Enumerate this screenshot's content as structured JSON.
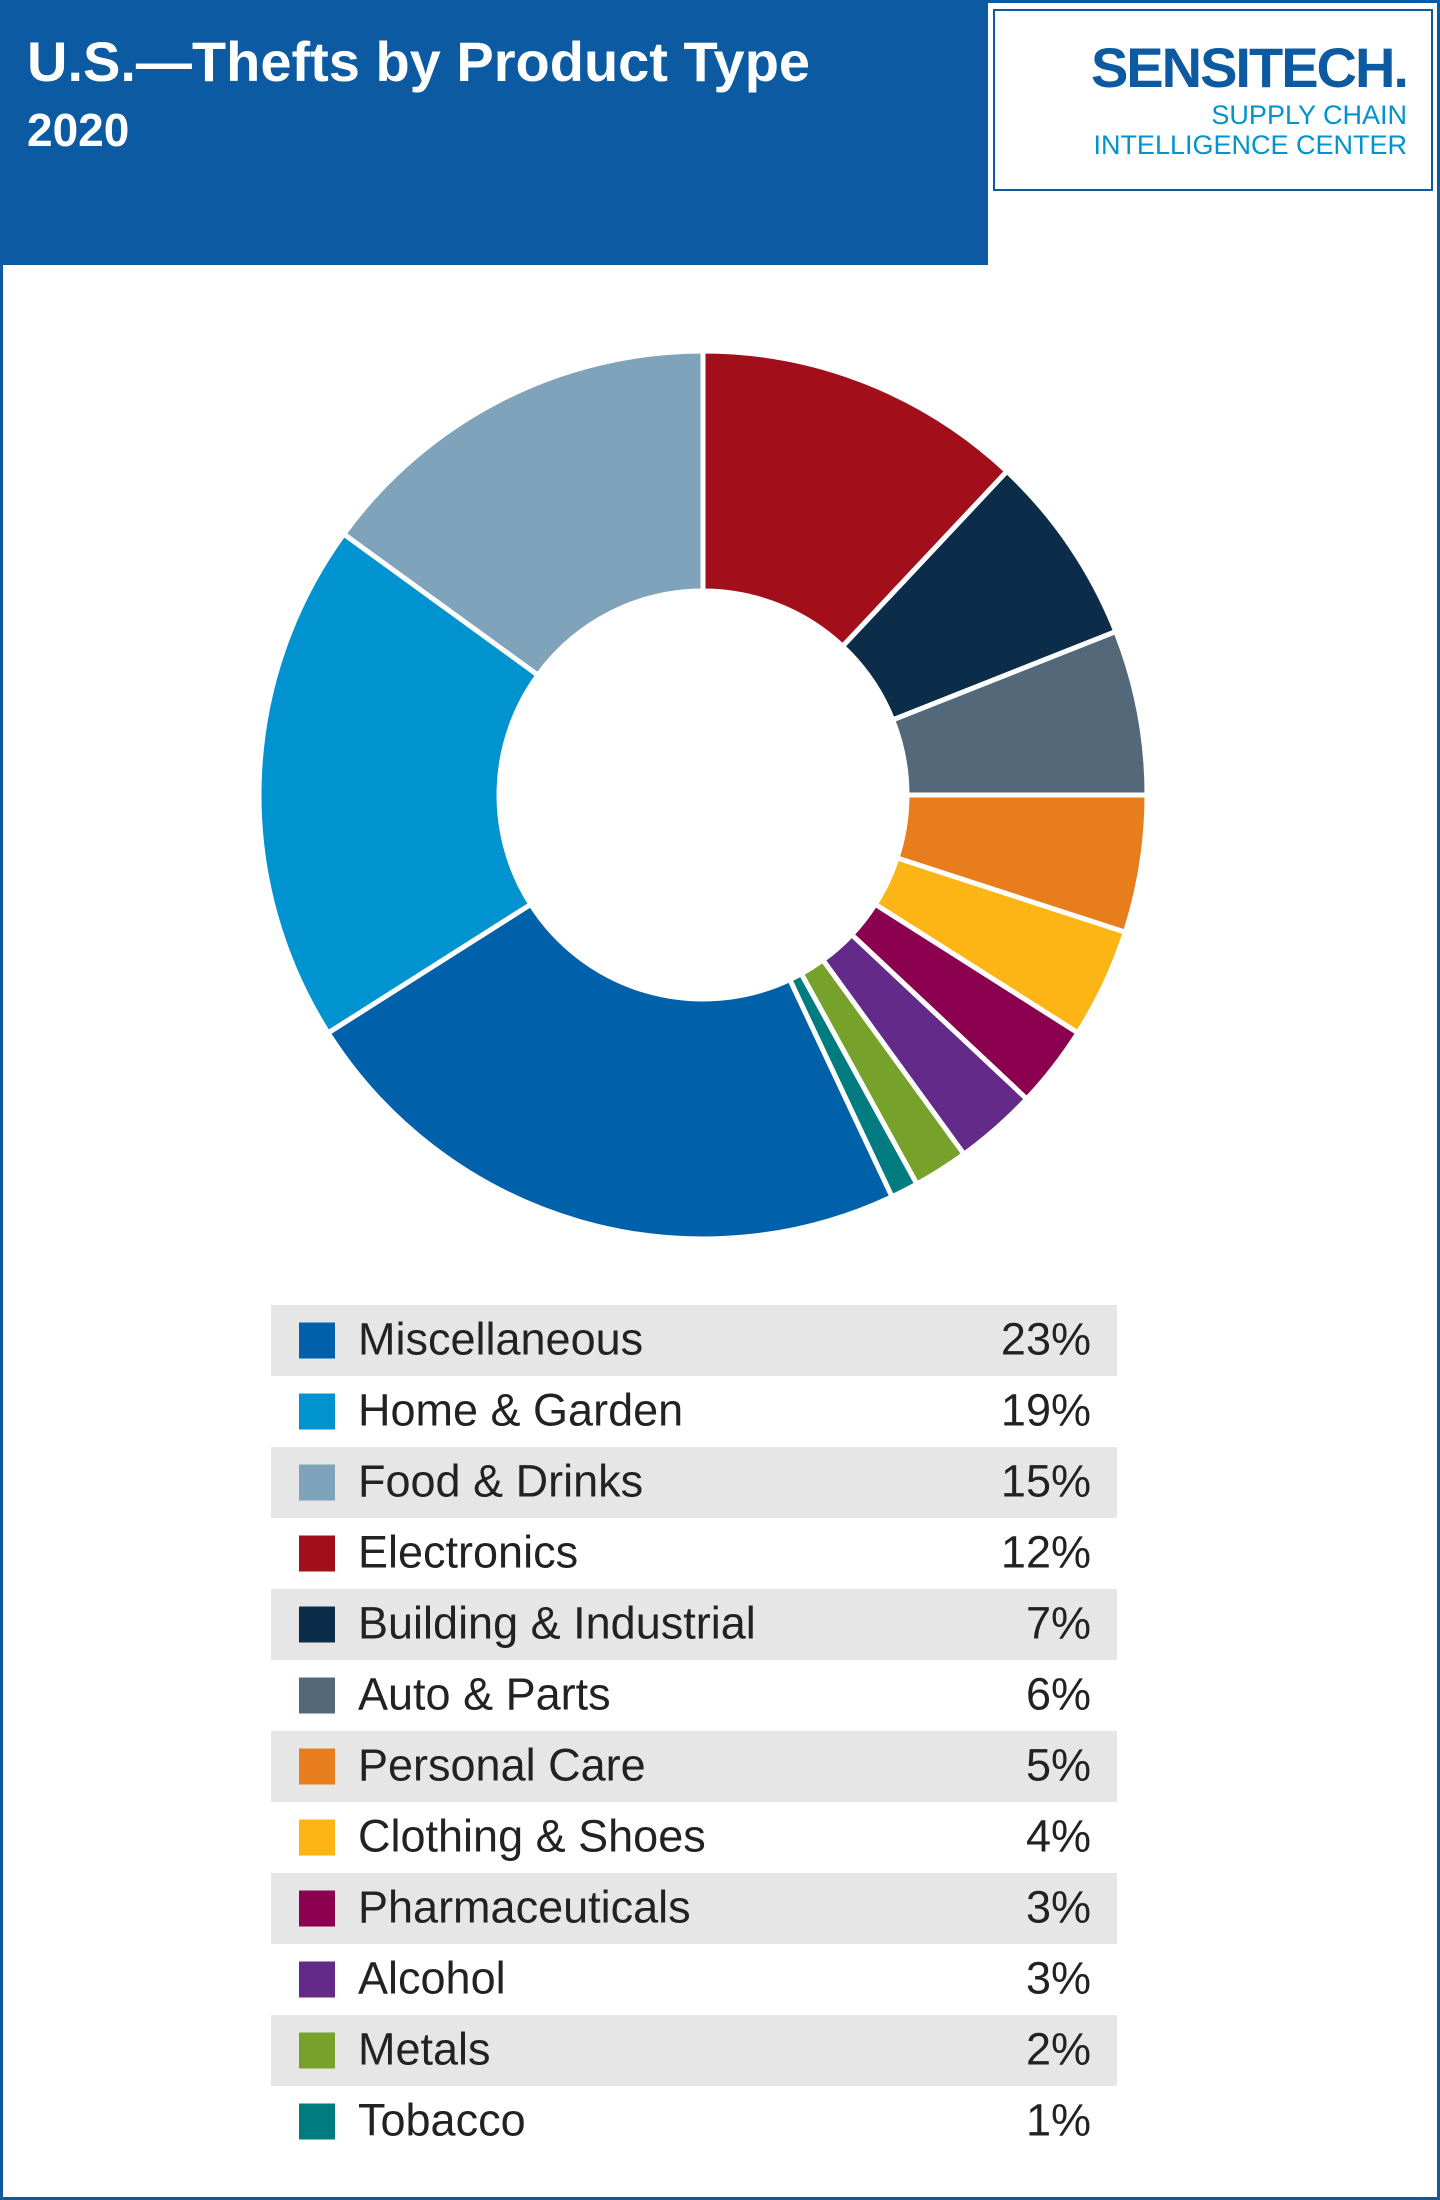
{
  "chart_data": {
    "type": "donut",
    "title": "U.S.—Thefts by Product Type",
    "subtitle": "2020",
    "categories": [
      "Miscellaneous",
      "Home & Garden",
      "Food & Drinks",
      "Electronics",
      "Building & Industrial",
      "Auto & Parts",
      "Personal Care",
      "Clothing & Shoes",
      "Pharmaceuticals",
      "Alcohol",
      "Metals",
      "Tobacco"
    ],
    "values": [
      23,
      19,
      15,
      12,
      7,
      6,
      5,
      4,
      3,
      3,
      2,
      1
    ],
    "value_labels": [
      "23%",
      "19%",
      "15%",
      "12%",
      "7%",
      "6%",
      "5%",
      "4%",
      "3%",
      "3%",
      "2%",
      "1%"
    ],
    "colors": [
      "#0060a9",
      "#0093d0",
      "#7fa3ba",
      "#a20f1a",
      "#0c2d4a",
      "#536878",
      "#e87d1e",
      "#fdb515",
      "#8c0050",
      "#642a8a",
      "#76a22c",
      "#007c80"
    ]
  },
  "logo": {
    "name": "SENSITECH.",
    "tagline_1": "SUPPLY CHAIN",
    "tagline_2": "INTELLIGENCE CENTER"
  }
}
